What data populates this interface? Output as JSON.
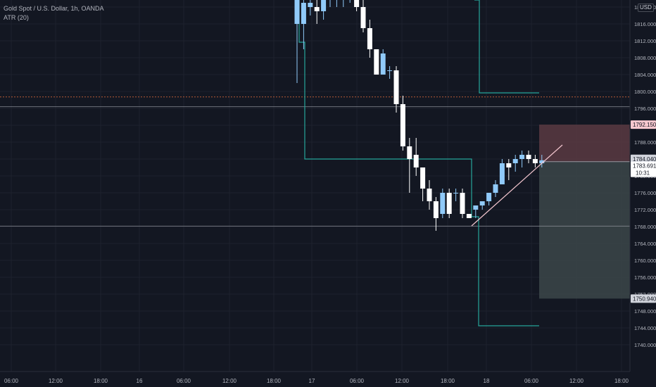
{
  "legend": {
    "symbol": "Gold Spot / U.S. Dollar, 1h, OANDA",
    "indicator": "ATR (20)"
  },
  "currency_badge": "USD",
  "colors": {
    "background": "#131722",
    "grid": "#1e222d",
    "up_candle": "#90caf9",
    "down_candle": "#ffffff",
    "atr_line": "#26a69a",
    "stop_zone": "#5b3a42",
    "target_zone": "#3a4447",
    "trendline": "#f3c6cf",
    "dashed_level": "#e06b3c",
    "horizontal_line": "#9598a1",
    "axis_text": "#b2b5be"
  },
  "chart_data": {
    "type": "candlestick",
    "title": "Gold Spot / U.S. Dollar, 1h, OANDA",
    "indicator": "ATR (20)",
    "ylim": [
      1736,
      1820
    ],
    "y_ticks": [
      1740.0,
      1744.0,
      1748.0,
      1752.0,
      1756.0,
      1760.0,
      1764.0,
      1768.0,
      1772.0,
      1776.0,
      1780.0,
      1784.0,
      1788.0,
      1792.0,
      1796.0,
      1800.0,
      1804.0,
      1808.0,
      1812.0,
      1816.0,
      1820.0
    ],
    "x_ticks": [
      "06:00",
      "12:00",
      "18:00",
      "16",
      "06:00",
      "12:00",
      "18:00",
      "17",
      "06:00",
      "12:00",
      "18:00",
      "18",
      "06:00",
      "12:00",
      "18:00"
    ],
    "price_labels": [
      {
        "value": 1792.15,
        "text": "1792.150",
        "kind": "stop"
      },
      {
        "value": 1784.04,
        "text": "1784.040",
        "kind": "entry"
      },
      {
        "value": 1783.691,
        "text": "1783.691",
        "kind": "last",
        "countdown": "10:31"
      },
      {
        "value": 1750.94,
        "text": "1750.940",
        "kind": "target"
      }
    ],
    "horizontal_levels": [
      {
        "value": 1796.4,
        "style": "solid"
      },
      {
        "value": 1768.1,
        "style": "solid"
      },
      {
        "value": 1798.7,
        "style": "dashed"
      }
    ],
    "candles": [
      {
        "o": 1816,
        "h": 1823,
        "l": 1802,
        "c": 1823
      },
      {
        "o": 1816,
        "h": 1822,
        "l": 1810,
        "c": 1821
      },
      {
        "o": 1820,
        "h": 1823,
        "l": 1818,
        "c": 1821
      },
      {
        "o": 1820,
        "h": 1822,
        "l": 1816,
        "c": 1819
      },
      {
        "o": 1819,
        "h": 1822,
        "l": 1817,
        "c": 1822
      },
      {
        "o": 1822,
        "h": 1824,
        "l": 1820,
        "c": 1824
      },
      {
        "o": 1822,
        "h": 1823,
        "l": 1820,
        "c": 1822
      },
      {
        "o": 1822,
        "h": 1823,
        "l": 1820,
        "c": 1822
      },
      {
        "o": 1822,
        "h": 1824,
        "l": 1821,
        "c": 1823
      },
      {
        "o": 1823,
        "h": 1824,
        "l": 1819,
        "c": 1820
      },
      {
        "o": 1820,
        "h": 1822,
        "l": 1814,
        "c": 1815
      },
      {
        "o": 1815,
        "h": 1817,
        "l": 1808,
        "c": 1810
      },
      {
        "o": 1810,
        "h": 1810,
        "l": 1804,
        "c": 1804
      },
      {
        "o": 1804,
        "h": 1810,
        "l": 1804,
        "c": 1809
      },
      {
        "o": 1805,
        "h": 1806,
        "l": 1803,
        "c": 1805
      },
      {
        "o": 1805,
        "h": 1806,
        "l": 1795,
        "c": 1797
      },
      {
        "o": 1797,
        "h": 1799,
        "l": 1786,
        "c": 1787
      },
      {
        "o": 1787,
        "h": 1789,
        "l": 1776,
        "c": 1784
      },
      {
        "o": 1785,
        "h": 1789,
        "l": 1780,
        "c": 1782
      },
      {
        "o": 1782,
        "h": 1782,
        "l": 1774,
        "c": 1777
      },
      {
        "o": 1777,
        "h": 1779,
        "l": 1772,
        "c": 1774
      },
      {
        "o": 1774,
        "h": 1775,
        "l": 1767,
        "c": 1770
      },
      {
        "o": 1771,
        "h": 1777,
        "l": 1770,
        "c": 1776
      },
      {
        "o": 1776,
        "h": 1777,
        "l": 1770,
        "c": 1771
      },
      {
        "o": 1776,
        "h": 1777,
        "l": 1774,
        "c": 1776
      },
      {
        "o": 1776,
        "h": 1777,
        "l": 1770,
        "c": 1771
      },
      {
        "o": 1771,
        "h": 1771,
        "l": 1770,
        "c": 1770
      },
      {
        "o": 1772,
        "h": 1773,
        "l": 1770,
        "c": 1773
      },
      {
        "o": 1773,
        "h": 1774,
        "l": 1772,
        "c": 1774
      },
      {
        "o": 1774,
        "h": 1776,
        "l": 1773,
        "c": 1776
      },
      {
        "o": 1776,
        "h": 1779,
        "l": 1775,
        "c": 1778
      },
      {
        "o": 1778,
        "h": 1784,
        "l": 1778,
        "c": 1783
      },
      {
        "o": 1783,
        "h": 1784,
        "l": 1779,
        "c": 1782
      },
      {
        "o": 1783,
        "h": 1785,
        "l": 1781,
        "c": 1784
      },
      {
        "o": 1784,
        "h": 1786,
        "l": 1782,
        "c": 1785
      },
      {
        "o": 1785,
        "h": 1786,
        "l": 1783,
        "c": 1784
      },
      {
        "o": 1784,
        "h": 1785,
        "l": 1782,
        "c": 1783
      },
      {
        "o": 1783,
        "h": 1785,
        "l": 1782,
        "c": 1783.7
      }
    ]
  }
}
